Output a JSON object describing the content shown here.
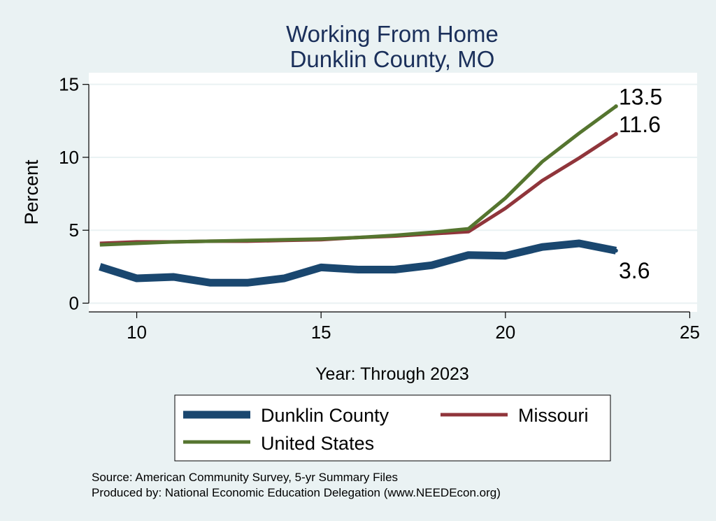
{
  "chart_data": {
    "type": "line",
    "title": [
      "Working From Home",
      "Dunklin County, MO"
    ],
    "xlabel": "Year: Through 2023",
    "ylabel": "Percent",
    "xlim": [
      8.7,
      25.2
    ],
    "ylim": [
      -0.6,
      15.8
    ],
    "xticks": [
      10,
      15,
      20,
      25
    ],
    "yticks": [
      0,
      5,
      10,
      15
    ],
    "grid": true,
    "legend_position": "bottom",
    "x": [
      9,
      10,
      11,
      12,
      13,
      14,
      15,
      16,
      17,
      18,
      19,
      20,
      21,
      22,
      23
    ],
    "series": [
      {
        "name": "Dunklin County",
        "color": "#1a476f",
        "values": [
          2.5,
          1.7,
          1.8,
          1.4,
          1.4,
          1.7,
          2.45,
          2.3,
          2.3,
          2.6,
          3.3,
          3.25,
          3.85,
          4.1,
          3.6
        ],
        "end_label": "3.6"
      },
      {
        "name": "Missouri",
        "color": "#90353b",
        "values": [
          4.1,
          4.2,
          4.2,
          4.25,
          4.25,
          4.3,
          4.35,
          4.5,
          4.6,
          4.75,
          4.9,
          6.5,
          8.4,
          9.95,
          11.6
        ],
        "end_label": "11.6"
      },
      {
        "name": "United States",
        "color": "#55752f",
        "values": [
          4.0,
          4.1,
          4.2,
          4.25,
          4.3,
          4.35,
          4.4,
          4.5,
          4.65,
          4.85,
          5.1,
          7.2,
          9.7,
          11.65,
          13.5
        ],
        "end_label": "13.5"
      }
    ],
    "notes": [
      "Source: American Community Survey, 5-yr Summary Files",
      "Produced by: National Economic Education Delegation (www.NEEDEcon.org)"
    ]
  }
}
